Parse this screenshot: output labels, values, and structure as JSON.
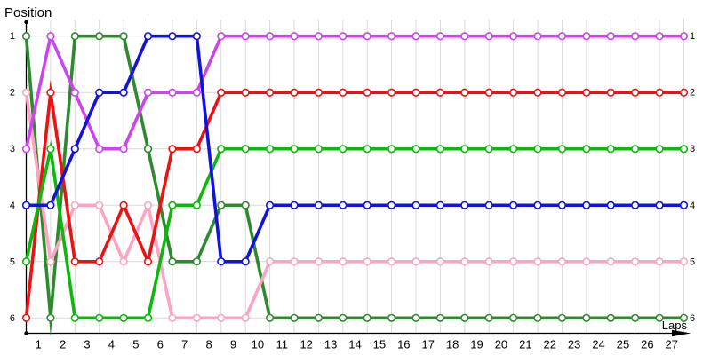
{
  "chart_data": {
    "type": "line",
    "title": "Position",
    "xlabel": "Laps",
    "x_points": 28,
    "x_tick_labels": [
      "1",
      "2",
      "3",
      "4",
      "5",
      "6",
      "7",
      "8",
      "9",
      "10",
      "11",
      "12",
      "13",
      "14",
      "15",
      "16",
      "17",
      "18",
      "19",
      "20",
      "21",
      "22",
      "23",
      "24",
      "25",
      "26",
      "27"
    ],
    "y_tick_labels_left": [
      "1",
      "2",
      "3",
      "4",
      "5",
      "6"
    ],
    "y_tick_labels_right": [
      "1",
      "2",
      "3",
      "4",
      "5",
      "6"
    ],
    "y_range": [
      1,
      6
    ],
    "y_inverted": true,
    "grid": true,
    "legend": "none",
    "colors": {
      "grid": "#d9d9d9",
      "axis": "#000000",
      "marker_fill": "#ffffff",
      "background": "#ffffff"
    },
    "draw_order": [
      "dark-green",
      "pink",
      "red",
      "green",
      "violet",
      "blue"
    ],
    "series": [
      {
        "name": "violet",
        "color": "#cc44ee",
        "positions": [
          3,
          1,
          2,
          3,
          3,
          2,
          2,
          2,
          1,
          1,
          1,
          1,
          1,
          1,
          1,
          1,
          1,
          1,
          1,
          1,
          1,
          1,
          1,
          1,
          1,
          1,
          1,
          1
        ]
      },
      {
        "name": "red",
        "color": "#ee1111",
        "positions": [
          6,
          2,
          5,
          5,
          4,
          5,
          3,
          3,
          2,
          2,
          2,
          2,
          2,
          2,
          2,
          2,
          2,
          2,
          2,
          2,
          2,
          2,
          2,
          2,
          2,
          2,
          2,
          2
        ]
      },
      {
        "name": "green",
        "color": "#0cb80c",
        "positions": [
          5,
          3,
          6,
          6,
          6,
          6,
          4,
          4,
          3,
          3,
          3,
          3,
          3,
          3,
          3,
          3,
          3,
          3,
          3,
          3,
          3,
          3,
          3,
          3,
          3,
          3,
          3,
          3
        ]
      },
      {
        "name": "blue",
        "color": "#1212dd",
        "positions": [
          4,
          4,
          3,
          2,
          2,
          1,
          1,
          1,
          5,
          5,
          4,
          4,
          4,
          4,
          4,
          4,
          4,
          4,
          4,
          4,
          4,
          4,
          4,
          4,
          4,
          4,
          4,
          4
        ]
      },
      {
        "name": "pink",
        "color": "#ffa3c2",
        "positions": [
          2,
          5,
          4,
          4,
          5,
          4,
          6,
          6,
          6,
          6,
          5,
          5,
          5,
          5,
          5,
          5,
          5,
          5,
          5,
          5,
          5,
          5,
          5,
          5,
          5,
          5,
          5,
          5
        ]
      },
      {
        "name": "dark-green",
        "color": "#2d8a2d",
        "positions": [
          1,
          6,
          1,
          1,
          1,
          3,
          5,
          5,
          4,
          4,
          6,
          6,
          6,
          6,
          6,
          6,
          6,
          6,
          6,
          6,
          6,
          6,
          6,
          6,
          6,
          6,
          6,
          6
        ]
      }
    ]
  }
}
